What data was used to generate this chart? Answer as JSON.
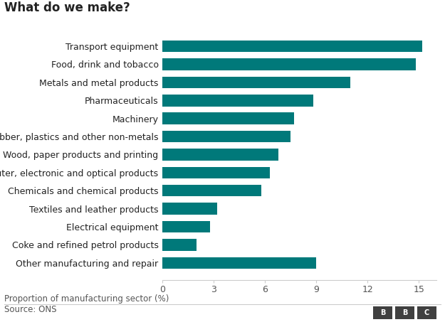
{
  "title": "What do we make?",
  "categories": [
    "Other manufacturing and repair",
    "Coke and refined petrol products",
    "Electrical equipment",
    "Textiles and leather products",
    "Chemicals and chemical products",
    "Computer, electronic and optical products",
    "Wood, paper products and printing",
    "Rubber, plastics and other non-metals",
    "Machinery",
    "Pharmaceuticals",
    "Metals and metal products",
    "Food, drink and tobacco",
    "Transport equipment"
  ],
  "values": [
    9.0,
    2.0,
    2.8,
    3.2,
    5.8,
    6.3,
    6.8,
    7.5,
    7.7,
    8.8,
    11.0,
    14.8,
    15.2
  ],
  "bar_color": "#00797a",
  "xlabel": "Proportion of manufacturing sector (%)",
  "xlim": [
    0,
    16
  ],
  "xticks": [
    0,
    3,
    6,
    9,
    12,
    15
  ],
  "source_text": "Source: ONS",
  "title_fontsize": 12,
  "label_fontsize": 9,
  "xlabel_fontsize": 8.5,
  "source_fontsize": 8.5,
  "background_color": "#ffffff",
  "text_color": "#222222",
  "axis_color": "#cccccc",
  "tick_label_color": "#555555"
}
